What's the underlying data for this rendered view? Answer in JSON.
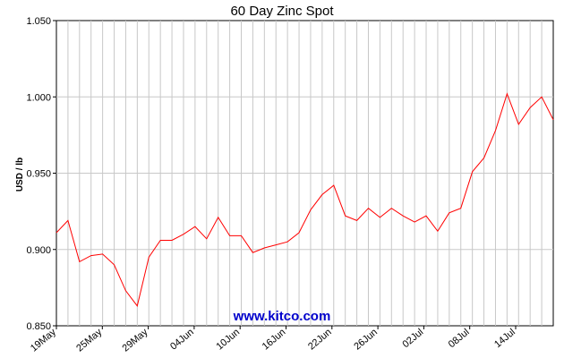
{
  "chart_data": {
    "type": "line",
    "title": "60 Day Zinc Spot",
    "ylabel": "USD / lb",
    "xlabel": "",
    "ylim": [
      0.85,
      1.05
    ],
    "yticks": [
      "0.850",
      "0.900",
      "0.950",
      "1.000",
      "1.050"
    ],
    "xticks": [
      "19May",
      "25May",
      "29May",
      "04Jun",
      "10Jun",
      "16Jun",
      "22Jun",
      "26Jun",
      "02Jul",
      "08Jul",
      "14Jul"
    ],
    "grid": true,
    "line_color": "#ff0000",
    "series": [
      {
        "values": [
          0.911,
          0.919,
          0.892,
          0.896,
          0.897,
          0.89,
          0.873,
          0.863,
          0.895,
          0.906,
          0.906,
          0.91,
          0.915,
          0.907,
          0.921,
          0.909,
          0.909,
          0.898,
          0.901,
          0.903,
          0.905,
          0.911,
          0.926,
          0.936,
          0.942,
          0.922,
          0.919,
          0.927,
          0.921,
          0.927,
          0.922,
          0.918,
          0.922,
          0.912,
          0.924,
          0.927,
          0.951,
          0.96,
          0.978,
          1.002,
          0.982,
          0.993,
          1.0,
          0.985
        ]
      }
    ]
  },
  "watermark": "www.kitco.com"
}
